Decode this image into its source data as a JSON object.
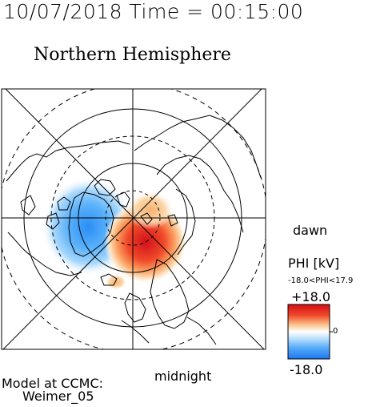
{
  "header": {
    "timestamp": "10/07/2018 Time = 00:15:00"
  },
  "plot": {
    "title": "Northern Hemisphere",
    "labels": {
      "bottom": "midnight",
      "right": "dawn"
    }
  },
  "colorbar": {
    "quantity_label": "PHI [kV]",
    "range_label": "-18.0<PHI<17.9",
    "max_label": "+18.0",
    "mid_label": "0",
    "min_label": "-18.0",
    "colors": {
      "positive": "#e8141c",
      "zero": "#ffffff",
      "negative": "#1e90ff"
    }
  },
  "credits": {
    "line1": "Model at CCMC:",
    "line2": "Weimer_05"
  }
}
